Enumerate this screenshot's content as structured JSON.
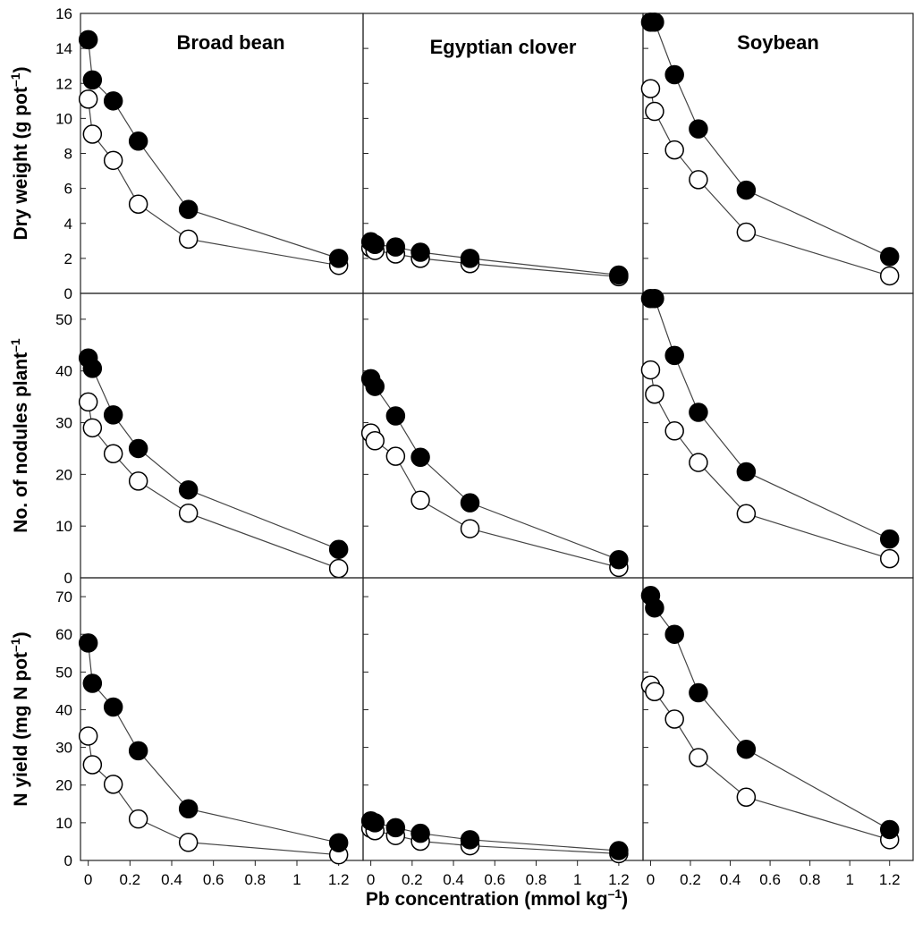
{
  "chart_data": {
    "type": "scatter",
    "panel_type": "line",
    "xlabel": "Pb concentration (mmol kg",
    "xlabel_sup": "–1",
    "xlabel_suffix": ")",
    "x_ticks": [
      "0",
      "0.2",
      "0.4",
      "0.6",
      "0.8",
      "1",
      "1.2"
    ],
    "x_tick_values": [
      0,
      0.2,
      0.4,
      0.6,
      0.8,
      1,
      1.2
    ],
    "xlim": [
      -0.02,
      1.3
    ],
    "columns": [
      "Broad bean",
      "Egyptian clover",
      "Soybean"
    ],
    "rows": [
      {
        "ylabel": "Dry weight (g pot",
        "ylabel_sup": "–1",
        "ylabel_suffix": ")",
        "ylim": [
          0,
          16
        ],
        "y_ticks": [
          "0",
          "2",
          "4",
          "6",
          "8",
          "10",
          "12",
          "14",
          "16"
        ],
        "y_tick_values": [
          0,
          2,
          4,
          6,
          8,
          10,
          12,
          14,
          16
        ],
        "panels": [
          {
            "x": [
              0,
              0.02,
              0.12,
              0.24,
              0.48,
              1.2
            ],
            "filled": [
              14.5,
              12.2,
              11.0,
              8.7,
              4.8,
              2.0
            ],
            "open": [
              11.1,
              9.1,
              7.6,
              5.1,
              3.1,
              1.6
            ]
          },
          {
            "x": [
              0,
              0.02,
              0.12,
              0.24,
              0.48,
              1.2
            ],
            "filled": [
              2.95,
              2.8,
              2.65,
              2.35,
              2.0,
              1.05
            ],
            "open": [
              2.6,
              2.45,
              2.25,
              2.0,
              1.7,
              0.95
            ]
          },
          {
            "x": [
              0,
              0.02,
              0.12,
              0.24,
              0.48,
              1.2
            ],
            "filled": [
              15.5,
              15.5,
              12.5,
              9.4,
              5.9,
              2.1
            ],
            "open": [
              11.7,
              10.4,
              8.2,
              6.5,
              3.5,
              1.0
            ]
          }
        ]
      },
      {
        "ylabel": "No. of nodules plant",
        "ylabel_sup": "–1",
        "ylabel_suffix": "",
        "ylim": [
          0,
          55
        ],
        "y_ticks": [
          "0",
          "10",
          "20",
          "30",
          "40",
          "50"
        ],
        "y_tick_values": [
          0,
          10,
          20,
          30,
          40,
          50
        ],
        "panels": [
          {
            "x": [
              0,
              0.02,
              0.12,
              0.24,
              0.48,
              1.2
            ],
            "filled": [
              42.5,
              40.5,
              31.5,
              25.0,
              17.0,
              5.5
            ],
            "open": [
              34.0,
              29.0,
              24.0,
              18.7,
              12.5,
              1.8
            ]
          },
          {
            "x": [
              0,
              0.02,
              0.12,
              0.24,
              0.48,
              1.2
            ],
            "filled": [
              38.5,
              37.0,
              31.3,
              23.3,
              14.5,
              3.5
            ],
            "open": [
              28.0,
              26.5,
              23.5,
              15.0,
              9.5,
              2.0
            ]
          },
          {
            "x": [
              0,
              0.02,
              0.12,
              0.24,
              0.48,
              1.2
            ],
            "filled": [
              54.0,
              54.0,
              43.0,
              32.0,
              20.5,
              7.5
            ],
            "open": [
              40.2,
              35.5,
              28.4,
              22.3,
              12.4,
              3.7
            ]
          }
        ]
      },
      {
        "ylabel": "N yield (mg N pot",
        "ylabel_sup": "–1",
        "ylabel_suffix": ")",
        "ylim": [
          0,
          75
        ],
        "y_ticks": [
          "0",
          "10",
          "20",
          "30",
          "40",
          "50",
          "60",
          "70"
        ],
        "y_tick_values": [
          0,
          10,
          20,
          30,
          40,
          50,
          60,
          70
        ],
        "panels": [
          {
            "x": [
              0,
              0.02,
              0.12,
              0.24,
              0.48,
              1.2
            ],
            "filled": [
              57.7,
              47.0,
              40.7,
              29.1,
              13.7,
              4.7
            ],
            "open": [
              33.0,
              25.4,
              20.2,
              11.0,
              4.8,
              1.5
            ]
          },
          {
            "x": [
              0,
              0.02,
              0.12,
              0.24,
              0.48,
              1.2
            ],
            "filled": [
              10.5,
              10.0,
              8.7,
              7.2,
              5.5,
              2.6
            ],
            "open": [
              8.5,
              7.9,
              6.6,
              5.1,
              3.9,
              1.8
            ]
          },
          {
            "x": [
              0,
              0.02,
              0.12,
              0.24,
              0.48,
              1.2
            ],
            "filled": [
              70.3,
              67.0,
              60.0,
              44.5,
              29.5,
              8.2
            ],
            "open": [
              46.5,
              44.8,
              37.5,
              27.3,
              16.8,
              5.5
            ]
          }
        ]
      }
    ],
    "series": [
      {
        "name": "",
        "marker": "filled circle",
        "color": "#000000"
      },
      {
        "name": "",
        "marker": "open circle",
        "color": "#ffffff"
      }
    ],
    "grid": false,
    "legend": "none"
  }
}
